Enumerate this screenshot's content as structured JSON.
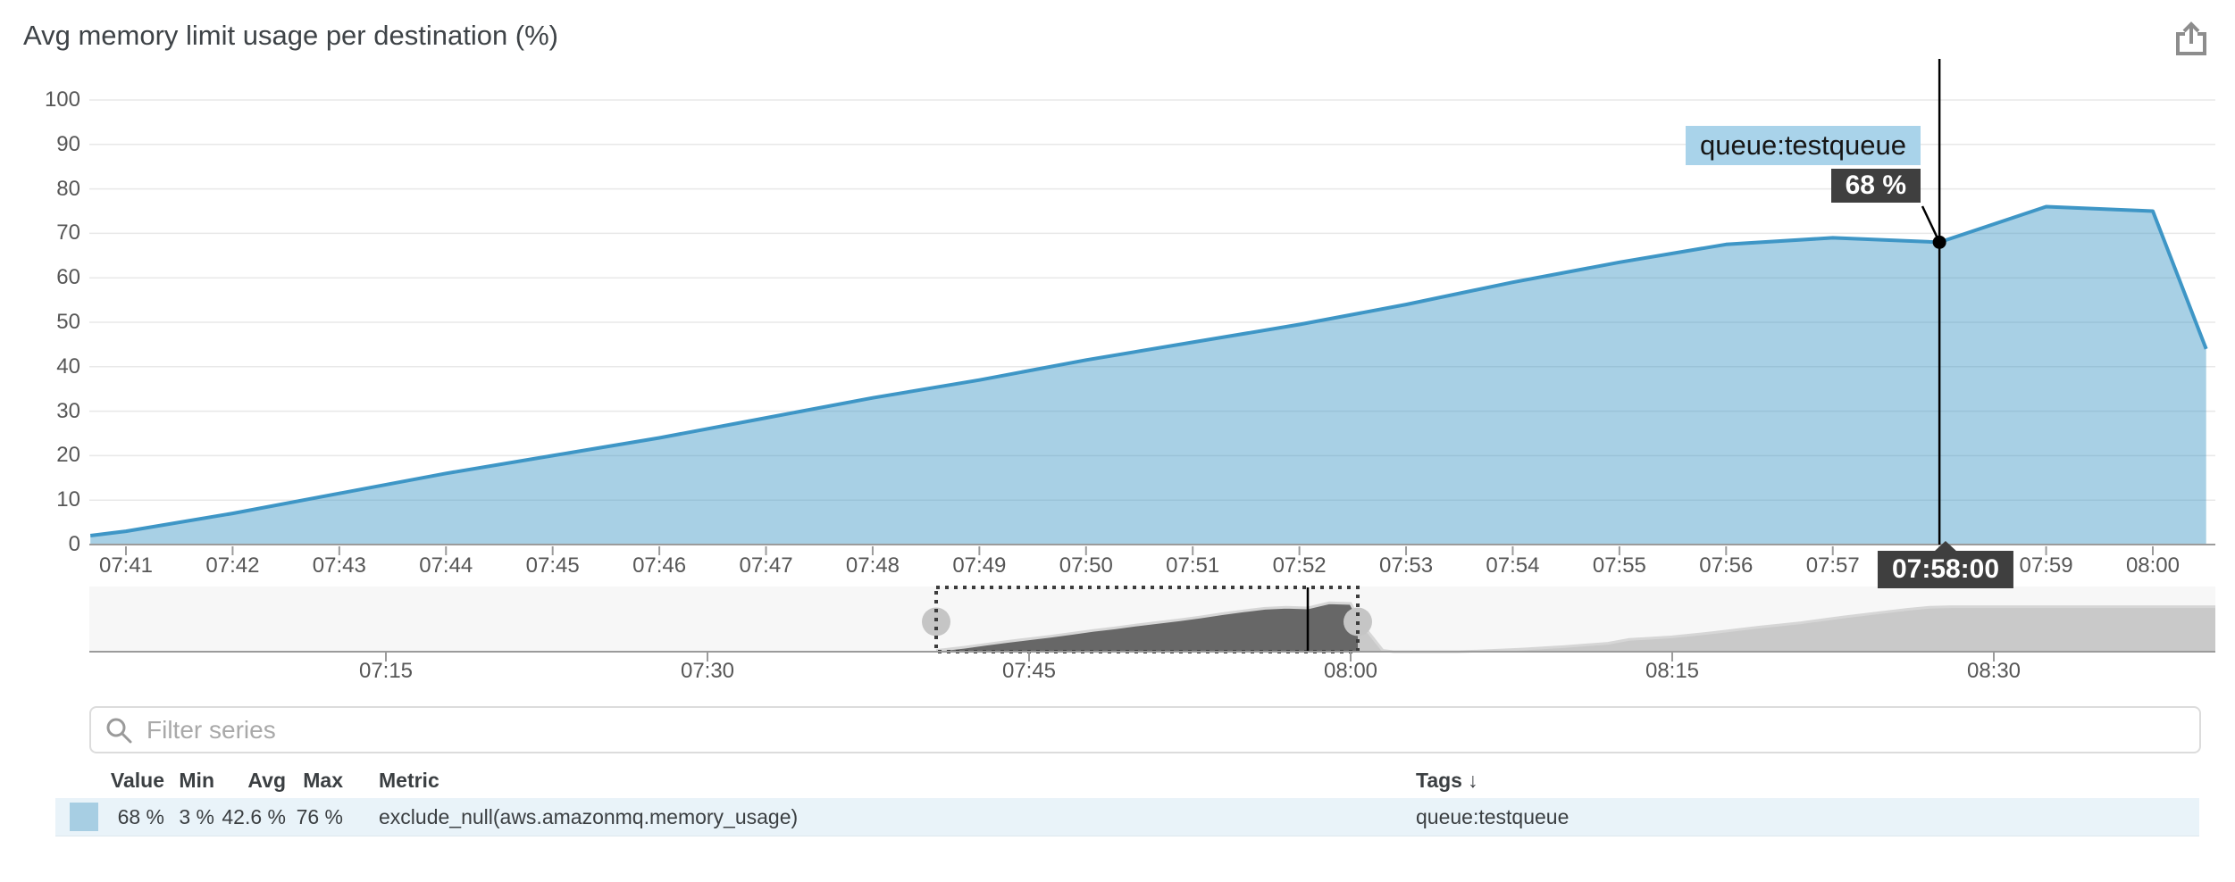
{
  "header": {
    "title": "Avg memory limit usage per destination (%)",
    "action_icon": "export-share-icon"
  },
  "tooltip": {
    "series_label": "queue:testqueue",
    "value_label": "68 %",
    "time_label": "07:58:00"
  },
  "filter": {
    "placeholder": "Filter series",
    "icon": "search-icon"
  },
  "table": {
    "headers": {
      "value": "Value",
      "min": "Min",
      "avg": "Avg",
      "max": "Max",
      "metric": "Metric",
      "tags": "Tags",
      "tags_sort_indicator": "↓"
    },
    "rows": [
      {
        "swatch_color": "#a7cee3",
        "value": "68 %",
        "min": "3 %",
        "avg": "42.6 %",
        "max": "76 %",
        "metric": "exclude_null(aws.amazonmq.memory_usage)",
        "tags": "queue:testqueue"
      }
    ]
  },
  "colors": {
    "line": "#3e96c6",
    "fill": "#a7cee3",
    "tooltip_dark": "#3f3f3f",
    "tooltip_blue": "#a9d3ea",
    "row_highlight": "#e9f3f9",
    "grid": "#e8e8e8",
    "axis": "#9b9b9b",
    "overview_fill": "#c9c9c9",
    "overview_selected_fill": "#676767",
    "handle": "#c5c5c5"
  },
  "chart_data": {
    "type": "area",
    "title": "Avg memory limit usage per destination (%)",
    "xlabel": "",
    "ylabel": "",
    "ylim": [
      0,
      100
    ],
    "grid": true,
    "legend_position": "bottom-table",
    "y_ticks": [
      0,
      10,
      20,
      30,
      40,
      50,
      60,
      70,
      80,
      90,
      100
    ],
    "x_ticks": [
      {
        "t": "07:41",
        "label": "07:41"
      },
      {
        "t": "07:42",
        "label": "07:42"
      },
      {
        "t": "07:43",
        "label": "07:43"
      },
      {
        "t": "07:44",
        "label": "07:44"
      },
      {
        "t": "07:45",
        "label": "07:45"
      },
      {
        "t": "07:46",
        "label": "07:46"
      },
      {
        "t": "07:47",
        "label": "07:47"
      },
      {
        "t": "07:48",
        "label": "07:48"
      },
      {
        "t": "07:49",
        "label": "07:49"
      },
      {
        "t": "07:50",
        "label": "07:50"
      },
      {
        "t": "07:51",
        "label": "07:51"
      },
      {
        "t": "07:52",
        "label": "07:52"
      },
      {
        "t": "07:53",
        "label": "07:53"
      },
      {
        "t": "07:54",
        "label": "07:54"
      },
      {
        "t": "07:55",
        "label": "07:55"
      },
      {
        "t": "07:56",
        "label": "07:56"
      },
      {
        "t": "07:57",
        "label": "07:57"
      },
      {
        "t": "07:58",
        "label": "07:58"
      },
      {
        "t": "07:59",
        "label": "07:59"
      },
      {
        "t": "08:00",
        "label": "08:00"
      }
    ],
    "series": [
      {
        "name": "exclude_null(aws.amazonmq.memory_usage)",
        "tags": "queue:testqueue",
        "line_color": "#3e96c6",
        "fill_color": "#a7cee3",
        "points": [
          [
            "07:40:40",
            2
          ],
          [
            "07:41:00",
            3
          ],
          [
            "07:42:00",
            7
          ],
          [
            "07:43:00",
            11.5
          ],
          [
            "07:44:00",
            16
          ],
          [
            "07:45:00",
            20
          ],
          [
            "07:46:00",
            24
          ],
          [
            "07:47:00",
            28.5
          ],
          [
            "07:48:00",
            33
          ],
          [
            "07:49:00",
            37
          ],
          [
            "07:50:00",
            41.5
          ],
          [
            "07:51:00",
            45.5
          ],
          [
            "07:52:00",
            49.5
          ],
          [
            "07:53:00",
            54
          ],
          [
            "07:54:00",
            59
          ],
          [
            "07:55:00",
            63.5
          ],
          [
            "07:56:00",
            67.5
          ],
          [
            "07:57:00",
            69
          ],
          [
            "07:58:00",
            68
          ],
          [
            "07:59:00",
            76
          ],
          [
            "08:00:00",
            75
          ],
          [
            "08:00:30",
            44
          ]
        ]
      }
    ],
    "hover": {
      "time": "07:58:00",
      "value": 68,
      "value_label": "68 %",
      "series_label": "queue:testqueue"
    },
    "stats": {
      "value": "68 %",
      "min": "3 %",
      "avg": "42.6 %",
      "max": "76 %"
    },
    "overview": {
      "x_ticks": [
        {
          "t": "07:15",
          "label": "07:15"
        },
        {
          "t": "07:30",
          "label": "07:30"
        },
        {
          "t": "07:45",
          "label": "07:45"
        },
        {
          "t": "08:00",
          "label": "08:00"
        },
        {
          "t": "08:15",
          "label": "08:15"
        },
        {
          "t": "08:30",
          "label": "08:30"
        }
      ],
      "selection": [
        "07:40:40",
        "08:00:20"
      ],
      "extra_points": [
        [
          "08:01:30",
          2
        ],
        [
          "08:02:00",
          0
        ],
        [
          "08:05:00",
          0
        ],
        [
          "08:06:00",
          1
        ],
        [
          "08:08:00",
          4
        ],
        [
          "08:10:00",
          8
        ],
        [
          "08:12:00",
          13
        ],
        [
          "08:13:00",
          19
        ],
        [
          "08:14:00",
          21
        ],
        [
          "08:15:00",
          23
        ],
        [
          "08:17:00",
          30
        ],
        [
          "08:19:00",
          38
        ],
        [
          "08:21:00",
          45
        ],
        [
          "08:23:00",
          54
        ],
        [
          "08:25:00",
          62
        ],
        [
          "08:26:00",
          66
        ],
        [
          "08:27:00",
          69
        ],
        [
          "08:28:00",
          70
        ],
        [
          "08:40:20",
          70
        ]
      ]
    }
  }
}
